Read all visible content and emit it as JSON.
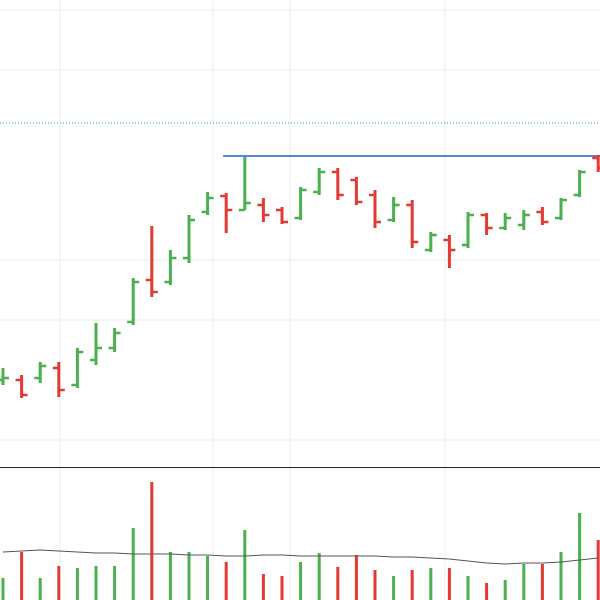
{
  "chart_data": {
    "type": "ohlc",
    "open": [
      220,
      220,
      222,
      232,
      215,
      240,
      252,
      278,
      320,
      318,
      342,
      388,
      404,
      390,
      395,
      390,
      382,
      408,
      428,
      420,
      405,
      380,
      395,
      350,
      360,
      355,
      385,
      372,
      375,
      388,
      382,
      405,
      442
    ],
    "high": [
      232,
      225,
      238,
      238,
      252,
      277,
      272,
      322,
      374,
      350,
      385,
      408,
      407,
      443,
      402,
      393,
      413,
      432,
      432,
      423,
      410,
      403,
      400,
      368,
      365,
      388,
      387,
      387,
      390,
      393,
      402,
      430,
      445
    ],
    "low": [
      215,
      202,
      217,
      203,
      212,
      235,
      248,
      275,
      303,
      315,
      337,
      385,
      367,
      390,
      378,
      376,
      380,
      405,
      400,
      395,
      372,
      378,
      352,
      348,
      332,
      352,
      365,
      370,
      370,
      375,
      380,
      403,
      428
    ],
    "close": [
      222,
      205,
      234,
      210,
      248,
      252,
      267,
      318,
      308,
      342,
      380,
      402,
      390,
      397,
      385,
      378,
      410,
      428,
      405,
      398,
      378,
      395,
      358,
      365,
      350,
      385,
      372,
      382,
      385,
      378,
      400,
      428,
      432
    ],
    "ylim": [
      133,
      600
    ],
    "up_color": "#4caf50",
    "down_color": "#e53935",
    "levels": [
      {
        "value": 444,
        "color": "#1e5bd6",
        "style": "solid",
        "from": 12
      },
      {
        "value": 477,
        "color": "#26a69a",
        "style": "dotted",
        "from": 0
      }
    ],
    "volume": [
      22,
      48,
      22,
      34,
      32,
      34,
      34,
      72,
      118,
      48,
      48,
      44,
      38,
      70,
      26,
      24,
      38,
      47,
      33,
      45,
      30,
      24,
      30,
      32,
      32,
      24,
      17,
      20,
      36,
      36,
      48,
      87,
      60
    ],
    "volume_ma": [
      48,
      49,
      50,
      49,
      48,
      47,
      47,
      46,
      46,
      46,
      45,
      45,
      44,
      44,
      45,
      45,
      44,
      44,
      44,
      44,
      44,
      43,
      43,
      42,
      41,
      39,
      37,
      36,
      37,
      37,
      38,
      40,
      42
    ],
    "volume_ma_color": "#555555",
    "vlim": [
      0,
      133
    ]
  }
}
